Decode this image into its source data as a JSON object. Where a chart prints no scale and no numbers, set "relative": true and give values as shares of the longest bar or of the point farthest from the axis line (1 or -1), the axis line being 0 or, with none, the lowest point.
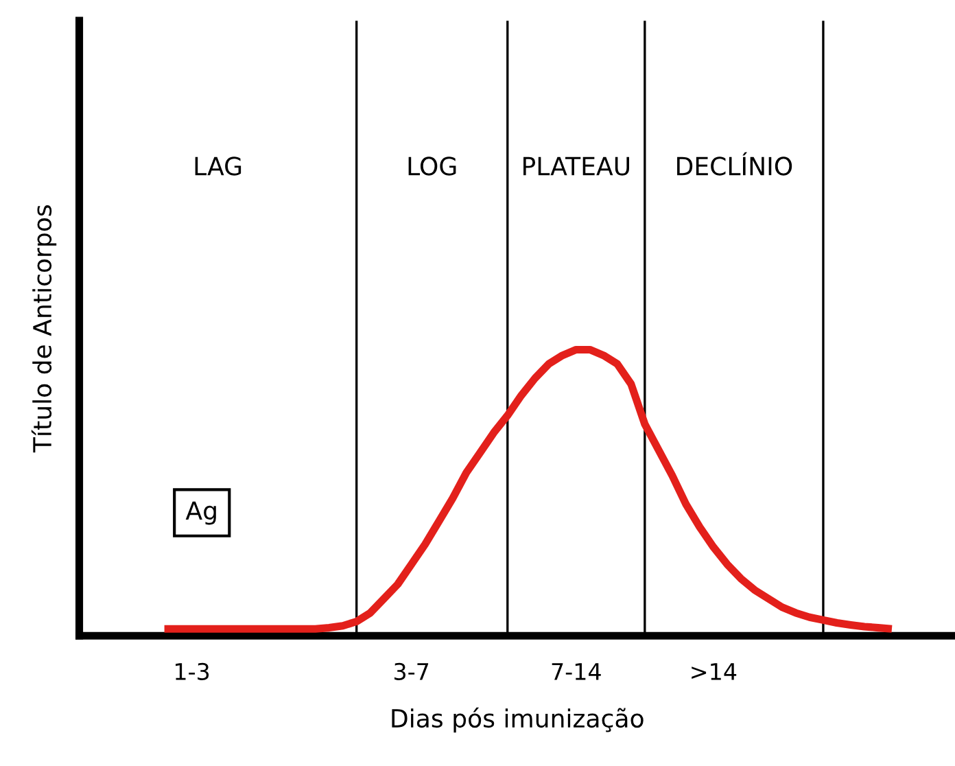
{
  "chart_data": {
    "type": "line",
    "relative": true,
    "xlabel": "Dias pós imunização",
    "ylabel": "Título de Anticorpos",
    "categories": [
      null,
      null,
      null,
      null,
      null,
      null,
      null,
      null,
      "1-3",
      null,
      null,
      null,
      null,
      null,
      null,
      null,
      null,
      null,
      null,
      null,
      null,
      null,
      null,
      null,
      "3-7",
      null,
      null,
      null,
      null,
      null,
      null,
      null,
      null,
      null,
      null,
      null,
      "7-14",
      null,
      null,
      null,
      null,
      null,
      null,
      null,
      null,
      null,
      ">14",
      null,
      null,
      null,
      null,
      null,
      null,
      null,
      null,
      null,
      null,
      null,
      null,
      null,
      null,
      null,
      null,
      null
    ],
    "series": [
      {
        "color": "#e3201b",
        "values": [
          null,
          null,
          null,
          null,
          null,
          null,
          0.024,
          0.024,
          0.024,
          0.024,
          0.024,
          0.024,
          0.024,
          0.024,
          0.024,
          0.024,
          0.024,
          0.024,
          0.028,
          0.035,
          0.05,
          0.08,
          0.13,
          0.18,
          0.25,
          0.32,
          0.4,
          0.48,
          0.57,
          0.64,
          0.71,
          0.77,
          0.84,
          0.9,
          0.95,
          0.98,
          1.0,
          1.0,
          0.98,
          0.95,
          0.88,
          0.74,
          0.65,
          0.56,
          0.46,
          0.38,
          0.31,
          0.25,
          0.2,
          0.16,
          0.13,
          0.1,
          0.08,
          0.065,
          0.055,
          0.045,
          0.038,
          0.032,
          0.028,
          0.024,
          null,
          null,
          null,
          null
        ]
      }
    ],
    "annotations": [
      "LAG",
      "LOG",
      "PLATEAU",
      "DECLÍNIO",
      "Ag"
    ],
    "grid": false,
    "legend": false,
    "marker": "none",
    "line_style": "solid"
  }
}
